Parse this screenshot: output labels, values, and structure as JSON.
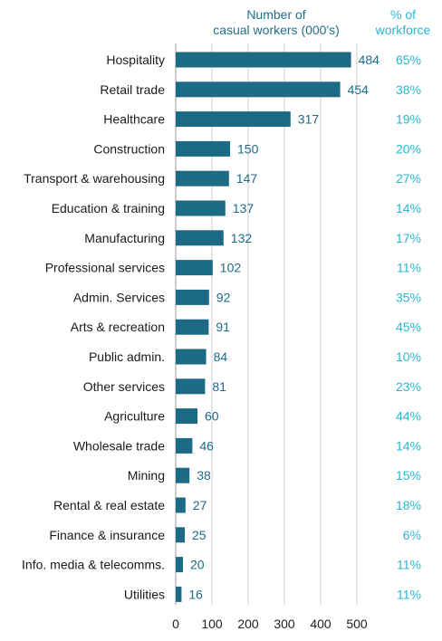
{
  "chart_data": {
    "type": "bar",
    "orientation": "horizontal",
    "header_values": {
      "line1": "Number  of",
      "line2": "casual workers (000's)"
    },
    "header_percent": {
      "line1": "% of",
      "line2": "workforce"
    },
    "categories": [
      "Hospitality",
      "Retail trade",
      "Healthcare",
      "Construction",
      "Transport & warehousing",
      "Education & training",
      "Manufacturing",
      "Professional services",
      "Admin. Services",
      "Arts & recreation",
      "Public admin.",
      "Other services",
      "Agriculture",
      "Wholesale trade",
      "Mining",
      "Rental & real estate",
      "Finance & insurance",
      "Info. media & telecomms.",
      "Utilities"
    ],
    "values": [
      484,
      454,
      317,
      150,
      147,
      137,
      132,
      102,
      92,
      91,
      84,
      81,
      60,
      46,
      38,
      27,
      25,
      20,
      16
    ],
    "percent_of_workforce": [
      "65%",
      "38%",
      "19%",
      "20%",
      "27%",
      "14%",
      "17%",
      "11%",
      "35%",
      "45%",
      "10%",
      "23%",
      "44%",
      "14%",
      "15%",
      "18%",
      "6%",
      "11%",
      "11%"
    ],
    "xlim": [
      0,
      500
    ],
    "xticks": [
      0,
      100,
      200,
      300,
      400,
      500
    ],
    "grid": "vertical",
    "colors": {
      "bar": "#1d6a86",
      "value_label": "#1d6a86",
      "percent_label": "#29b6d4",
      "grid": "#d0d0d0"
    }
  }
}
